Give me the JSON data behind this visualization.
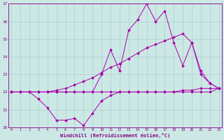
{
  "xlabel": "Windchill (Refroidissement éolien,°C)",
  "x_values": [
    0,
    1,
    2,
    3,
    4,
    5,
    6,
    7,
    8,
    9,
    10,
    11,
    12,
    13,
    14,
    15,
    16,
    17,
    18,
    19,
    20,
    21,
    22,
    23
  ],
  "line_jagged": [
    12,
    12,
    12,
    12,
    12,
    12,
    12,
    12,
    12,
    12,
    13.0,
    14.4,
    13.2,
    15.5,
    16.1,
    17.0,
    16.0,
    16.6,
    14.8,
    13.5,
    14.8,
    13.0,
    12.5,
    12.2
  ],
  "line_upper": [
    12,
    12,
    12,
    12,
    12,
    12.1,
    12.2,
    12.4,
    12.6,
    12.8,
    13.1,
    13.4,
    13.6,
    13.9,
    14.2,
    14.5,
    14.7,
    14.9,
    15.1,
    15.3,
    14.8,
    13.2,
    12.5,
    12.2
  ],
  "line_lower": [
    12,
    12,
    12,
    11.6,
    11.1,
    10.4,
    10.4,
    10.5,
    10.1,
    10.8,
    11.5,
    11.8,
    12.0,
    12.0,
    12.0,
    12.0,
    12.0,
    12.0,
    12.0,
    12.1,
    12.1,
    12.2,
    12.2,
    12.2
  ],
  "line_flat": [
    12,
    12,
    12,
    12,
    12,
    12,
    12,
    12,
    12,
    12,
    12,
    12,
    12,
    12,
    12,
    12,
    12,
    12,
    12,
    12,
    12,
    12,
    12,
    12.2
  ],
  "bg_color": "#cce8e5",
  "grid_color": "#aacfcc",
  "line_color": "#aa00aa",
  "ylim_min": 10,
  "ylim_max": 17,
  "yticks": [
    10,
    11,
    12,
    13,
    14,
    15,
    16,
    17
  ],
  "xticks": [
    0,
    1,
    2,
    3,
    4,
    5,
    6,
    7,
    8,
    9,
    10,
    11,
    12,
    13,
    14,
    15,
    16,
    17,
    18,
    19,
    20,
    21,
    22,
    23
  ]
}
